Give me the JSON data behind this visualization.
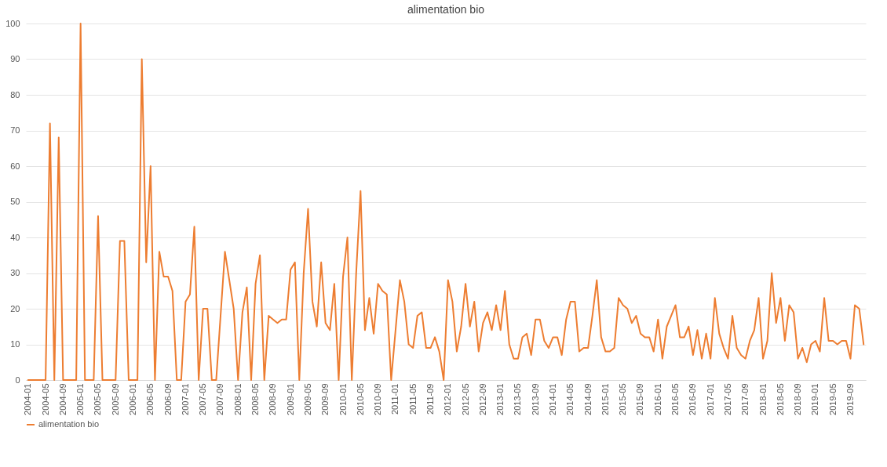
{
  "chart_data": {
    "type": "line",
    "title": "alimentation bio",
    "categories": [
      "2004-01",
      null,
      null,
      null,
      "2004-05",
      null,
      null,
      null,
      "2004-09",
      null,
      null,
      null,
      "2005-01",
      null,
      null,
      null,
      "2005-05",
      null,
      null,
      null,
      "2005-09",
      null,
      null,
      null,
      "2006-01",
      null,
      null,
      null,
      "2006-05",
      null,
      null,
      null,
      "2006-09",
      null,
      null,
      null,
      "2007-01",
      null,
      null,
      null,
      "2007-05",
      null,
      null,
      null,
      "2007-09",
      null,
      null,
      null,
      "2008-01",
      null,
      null,
      null,
      "2008-05",
      null,
      null,
      null,
      "2008-09",
      null,
      null,
      null,
      "2009-01",
      null,
      null,
      null,
      "2009-05",
      null,
      null,
      null,
      "2009-09",
      null,
      null,
      null,
      "2010-01",
      null,
      null,
      null,
      "2010-05",
      null,
      null,
      null,
      "2010-09",
      null,
      null,
      null,
      "2011-01",
      null,
      null,
      null,
      "2011-05",
      null,
      null,
      null,
      "2011-09",
      null,
      null,
      null,
      "2012-01",
      null,
      null,
      null,
      "2012-05",
      null,
      null,
      null,
      "2012-09",
      null,
      null,
      null,
      "2013-01",
      null,
      null,
      null,
      "2013-05",
      null,
      null,
      null,
      "2013-09",
      null,
      null,
      null,
      "2014-01",
      null,
      null,
      null,
      "2014-05",
      null,
      null,
      null,
      "2014-09",
      null,
      null,
      null,
      "2015-01",
      null,
      null,
      null,
      "2015-05",
      null,
      null,
      null,
      "2015-09",
      null,
      null,
      null,
      "2016-01",
      null,
      null,
      null,
      "2016-05",
      null,
      null,
      null,
      "2016-09",
      null,
      null,
      null,
      "2017-01",
      null,
      null,
      null,
      "2017-05",
      null,
      null,
      null,
      "2017-09",
      null,
      null,
      null,
      "2018-01",
      null,
      null,
      null,
      "2018-05",
      null,
      null,
      null,
      "2018-09",
      null,
      null,
      null,
      "2019-01",
      null,
      null,
      null,
      "2019-05",
      null,
      null,
      null,
      "2019-09",
      null,
      null,
      null
    ],
    "series": [
      {
        "name": "alimentation bio",
        "color": "#ed7d31",
        "values": [
          0,
          0,
          0,
          0,
          0,
          72,
          0,
          68,
          0,
          0,
          0,
          0,
          100,
          0,
          0,
          0,
          46,
          0,
          0,
          0,
          0,
          39,
          39,
          0,
          0,
          0,
          90,
          33,
          60,
          0,
          36,
          29,
          29,
          25,
          0,
          0,
          22,
          24,
          43,
          0,
          20,
          20,
          0,
          0,
          18,
          36,
          28,
          20,
          0,
          19,
          26,
          0,
          27,
          35,
          0,
          18,
          17,
          16,
          17,
          17,
          31,
          33,
          0,
          30,
          48,
          22,
          15,
          33,
          16,
          14,
          27,
          0,
          29,
          40,
          0,
          30,
          53,
          14,
          23,
          13,
          27,
          25,
          24,
          0,
          14,
          28,
          22,
          10,
          9,
          18,
          19,
          9,
          9,
          12,
          8,
          0,
          28,
          22,
          8,
          15,
          27,
          15,
          22,
          8,
          16,
          19,
          14,
          21,
          14,
          25,
          10,
          6,
          6,
          12,
          13,
          7,
          17,
          17,
          11,
          9,
          12,
          12,
          7,
          17,
          22,
          22,
          8,
          9,
          9,
          18,
          28,
          12,
          8,
          8,
          9,
          23,
          21,
          20,
          16,
          18,
          13,
          12,
          12,
          8,
          17,
          6,
          15,
          18,
          21,
          12,
          12,
          15,
          7,
          14,
          6,
          13,
          6,
          23,
          13,
          9,
          6,
          18,
          9,
          7,
          6,
          11,
          14,
          23,
          6,
          11,
          30,
          16,
          23,
          11,
          21,
          19,
          6,
          9,
          5,
          10,
          11,
          8,
          23,
          11,
          11,
          10,
          11,
          11,
          6,
          21,
          20,
          10
        ]
      }
    ],
    "ylim": [
      0,
      100
    ],
    "yticks": [
      0,
      10,
      20,
      30,
      40,
      50,
      60,
      70,
      80,
      90,
      100
    ],
    "grid": "y",
    "legend": "bottom",
    "marker": "none",
    "line_style": "solid"
  }
}
